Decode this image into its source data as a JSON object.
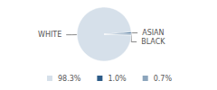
{
  "chart_data": {
    "type": "pie",
    "categories": [
      "WHITE",
      "ASIAN",
      "BLACK"
    ],
    "values": [
      98.3,
      1.0,
      0.7
    ],
    "value_labels": [
      "98.3%",
      "1.0%",
      "0.7%"
    ],
    "colors": [
      "#d6e0ea",
      "#2d5c88",
      "#8ca5bc"
    ],
    "legend": "bottom"
  }
}
